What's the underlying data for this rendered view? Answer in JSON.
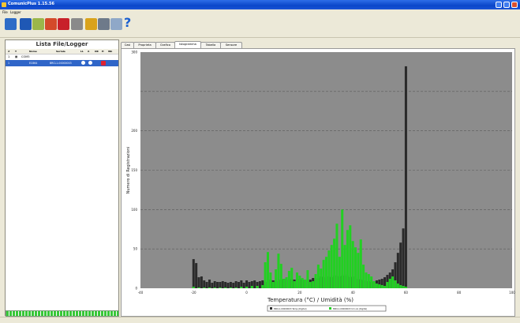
{
  "app": {
    "title": "ComunicPlus 1.15.56"
  },
  "menu": {
    "items": [
      "File",
      "Logger"
    ]
  },
  "toolbar": {
    "buttons": [
      {
        "name": "open-icon",
        "color": "#2e6cc7"
      },
      {
        "name": "save-icon",
        "color": "#1f58b5"
      },
      {
        "name": "download-icon",
        "color": "#9bb64a"
      },
      {
        "name": "report-icon",
        "color": "#d44a2a"
      },
      {
        "name": "pdf-icon",
        "color": "#c8202a"
      },
      {
        "name": "tools-icon",
        "color": "#8a8a8a"
      },
      {
        "name": "settings-icon",
        "color": "#d9a21b"
      },
      {
        "name": "print-icon",
        "color": "#6e7a8a"
      },
      {
        "name": "preview-icon",
        "color": "#8fa8c8"
      }
    ],
    "help_label": "?"
  },
  "left_panel": {
    "title": "Lista File/Logger",
    "headers": [
      "#",
      "T",
      "Nome",
      "Seriale",
      "LL",
      "A",
      "OK",
      "H",
      "Wk"
    ],
    "tree_root": {
      "index": "1",
      "label": "COM3"
    },
    "selected_row": {
      "index": "1",
      "name": "EC664",
      "serial": "BRCL1-00000003"
    },
    "progress": 1.0
  },
  "tabs": {
    "items": [
      "Casi",
      "Proprieta",
      "Grafico",
      "Istogramma",
      "Tabella",
      "Sensore"
    ],
    "active_index": 3
  },
  "chart_data": {
    "type": "bar",
    "ylabel": "Numero di Registrazioni",
    "xlabel": "Temperatura (°C) / Umidità (%)",
    "xlim": [
      -40,
      100
    ],
    "ylim": [
      0,
      300
    ],
    "x_ticks": [
      "-40",
      "-20",
      "0",
      "20",
      "40",
      "60",
      "80",
      "100"
    ],
    "y_ticks": [
      "0",
      "50",
      "100",
      "150",
      "200",
      "300"
    ],
    "grid": true,
    "legend_position": "bottom",
    "colors": {
      "background": "#8c8c8c",
      "temperature": "#2a2a2a",
      "humidity": "#22d022"
    },
    "series": [
      {
        "name": "BRCL1-00000003 Temp.(Digital)",
        "color": "#2a2a2a",
        "x": [
          -20,
          -19,
          -18,
          -17,
          -16,
          -15,
          -14,
          -13,
          -12,
          -11,
          -10,
          -9,
          -8,
          -7,
          -6,
          -5,
          -4,
          -3,
          -2,
          -1,
          0,
          1,
          2,
          3,
          4,
          5,
          6,
          7,
          8,
          9,
          10,
          11,
          12,
          13,
          14,
          15,
          16,
          17,
          18,
          19,
          20,
          21,
          22,
          23,
          24,
          25,
          26,
          27,
          28,
          29,
          30,
          31,
          32,
          33,
          34,
          35,
          36,
          37,
          38,
          39,
          40,
          41,
          42,
          43,
          44,
          45,
          46,
          47,
          48,
          49,
          50,
          51,
          52,
          53,
          54,
          55,
          56,
          57,
          58,
          59,
          60
        ],
        "values": [
          37,
          32,
          14,
          15,
          10,
          8,
          11,
          7,
          9,
          8,
          8,
          9,
          8,
          7,
          8,
          7,
          9,
          8,
          10,
          7,
          10,
          8,
          9,
          10,
          8,
          9,
          10,
          8,
          10,
          11,
          10,
          9,
          10,
          11,
          12,
          10,
          11,
          12,
          11,
          10,
          12,
          11,
          10,
          12,
          11,
          13,
          12,
          13,
          15,
          14,
          16,
          15,
          14,
          16,
          17,
          15,
          16,
          18,
          16,
          14,
          15,
          13,
          12,
          11,
          10,
          9,
          9,
          8,
          9,
          10,
          11,
          12,
          14,
          17,
          20,
          24,
          33,
          45,
          58,
          76,
          282
        ]
      },
      {
        "name": "BRCL1-00000003 Um.rel.(Digital)",
        "color": "#22d022",
        "x": [
          -20,
          -18,
          -16,
          -14,
          -12,
          -10,
          -8,
          -6,
          -4,
          -2,
          0,
          2,
          4,
          6,
          7,
          8,
          9,
          10,
          11,
          12,
          13,
          14,
          15,
          16,
          17,
          18,
          19,
          20,
          21,
          22,
          23,
          24,
          25,
          26,
          27,
          28,
          29,
          30,
          31,
          32,
          33,
          34,
          35,
          36,
          37,
          38,
          39,
          40,
          41,
          42,
          43,
          44,
          45,
          46,
          47,
          48,
          49,
          50,
          51,
          52,
          53,
          54,
          55,
          56,
          57,
          58,
          59,
          60
        ],
        "values": [
          2,
          1,
          1,
          1,
          1,
          1,
          1,
          1,
          1,
          2,
          2,
          3,
          3,
          4,
          33,
          46,
          20,
          8,
          24,
          44,
          31,
          12,
          14,
          22,
          26,
          9,
          20,
          16,
          13,
          11,
          23,
          8,
          9,
          18,
          30,
          25,
          36,
          40,
          48,
          55,
          63,
          82,
          40,
          100,
          55,
          74,
          80,
          60,
          52,
          45,
          62,
          30,
          20,
          18,
          15,
          9,
          6,
          5,
          4,
          3,
          8,
          12,
          15,
          10,
          6,
          4,
          3,
          2
        ]
      }
    ]
  }
}
